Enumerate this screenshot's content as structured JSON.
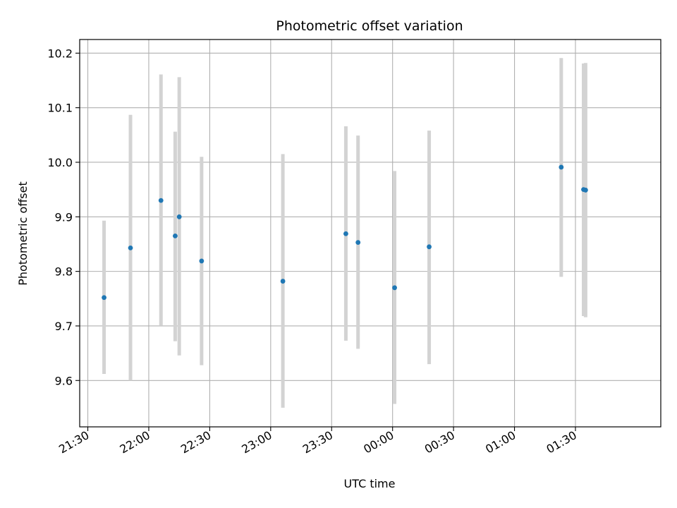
{
  "chart_data": {
    "type": "scatter",
    "title": "Photometric offset variation",
    "xlabel": "UTC time",
    "ylabel": "Photometric offset",
    "x_axis_kind": "time",
    "xlim": [
      "21:26",
      "02:12"
    ],
    "ylim": [
      9.515,
      10.225
    ],
    "grid": true,
    "x_ticks": [
      "21:30",
      "22:00",
      "22:30",
      "23:00",
      "23:30",
      "00:00",
      "00:30",
      "01:00",
      "01:30"
    ],
    "y_ticks": [
      9.6,
      9.7,
      9.8,
      9.9,
      10.0,
      10.1,
      10.2
    ],
    "y_tick_labels": [
      "9.6",
      "9.7",
      "9.8",
      "9.9",
      "10.0",
      "10.1",
      "10.2"
    ],
    "points": [
      {
        "x": "21:38",
        "y": 9.752,
        "ylow": 9.612,
        "yhigh": 9.893
      },
      {
        "x": "21:51",
        "y": 9.843,
        "ylow": 9.6,
        "yhigh": 10.087
      },
      {
        "x": "22:06",
        "y": 9.93,
        "ylow": 9.701,
        "yhigh": 10.161
      },
      {
        "x": "22:13",
        "y": 9.865,
        "ylow": 9.672,
        "yhigh": 10.056
      },
      {
        "x": "22:15",
        "y": 9.9,
        "ylow": 9.646,
        "yhigh": 10.156
      },
      {
        "x": "22:26",
        "y": 9.819,
        "ylow": 9.628,
        "yhigh": 10.01
      },
      {
        "x": "23:06",
        "y": 9.782,
        "ylow": 9.55,
        "yhigh": 10.015
      },
      {
        "x": "23:37",
        "y": 9.869,
        "ylow": 9.673,
        "yhigh": 10.066
      },
      {
        "x": "23:43",
        "y": 9.853,
        "ylow": 9.658,
        "yhigh": 10.049
      },
      {
        "x": "00:01",
        "y": 9.77,
        "ylow": 9.557,
        "yhigh": 9.984
      },
      {
        "x": "00:18",
        "y": 9.845,
        "ylow": 9.63,
        "yhigh": 10.058
      },
      {
        "x": "01:23",
        "y": 9.991,
        "ylow": 9.79,
        "yhigh": 10.191
      },
      {
        "x": "01:34",
        "y": 9.95,
        "ylow": 9.718,
        "yhigh": 10.181
      },
      {
        "x": "01:35",
        "y": 9.949,
        "ylow": 9.716,
        "yhigh": 10.182
      }
    ],
    "colors": {
      "point": "#1f77b4",
      "errorbar": "#d3d3d3",
      "grid": "#b0b0b0",
      "axis": "#000000"
    }
  }
}
